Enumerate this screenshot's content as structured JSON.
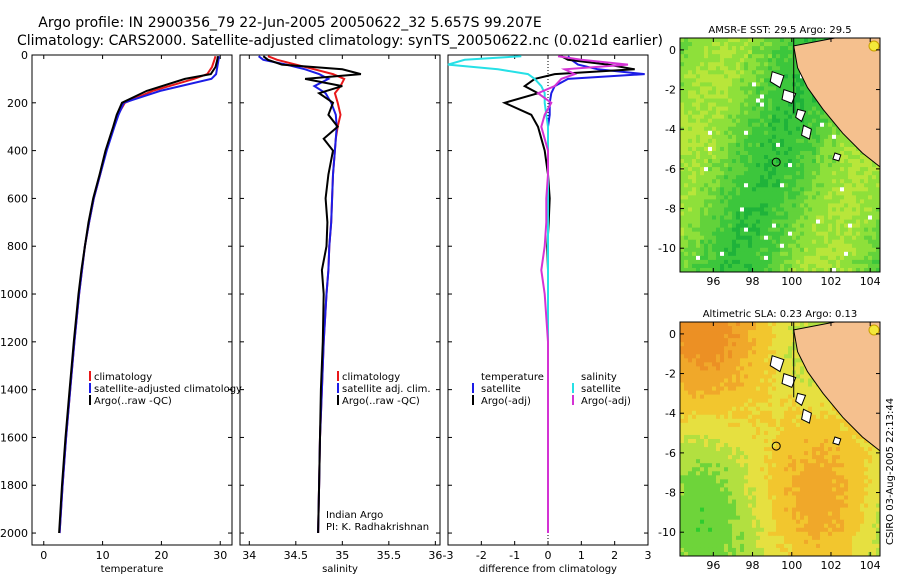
{
  "header": {
    "line1": "Argo profile: IN 2900356_79 22-Jun-2005 20050622_32 5.657S 99.207E",
    "line2": "Climatology: CARS2000. Satellite-adjusted climatology: synTS_20050622.nc (0.021d earlier)"
  },
  "footer": {
    "credit": "CSIRO 03-Aug-2005 22:13:44"
  },
  "colors": {
    "red": "#e8181a",
    "blue": "#1c1ce6",
    "black": "#000000",
    "cyan": "#26e0e6",
    "magenta": "#d433d4",
    "land": "#f5c08e"
  },
  "chart_data": [
    {
      "type": "line",
      "title": "",
      "xlabel": "temperature",
      "ylabel": "",
      "xlim": [
        -2,
        32
      ],
      "ylim": [
        2050,
        0
      ],
      "xticks": [
        0,
        10,
        20,
        30
      ],
      "yticks": [
        0,
        200,
        400,
        600,
        800,
        1000,
        1200,
        1400,
        1600,
        1800,
        2000
      ],
      "depths": [
        5,
        20,
        50,
        80,
        100,
        150,
        200,
        250,
        300,
        400,
        500,
        600,
        700,
        800,
        900,
        1000,
        1200,
        1400,
        1600,
        1800,
        2000
      ],
      "series": [
        {
          "name": "climatology",
          "color": "red",
          "values": [
            29.2,
            29.0,
            28.6,
            27.8,
            25.5,
            18.5,
            13.8,
            12.6,
            11.9,
            10.6,
            9.6,
            8.5,
            7.7,
            7.0,
            6.5,
            6.0,
            5.2,
            4.5,
            3.8,
            3.2,
            2.7
          ]
        },
        {
          "name": "satellite-adjusted climatology",
          "color": "blue",
          "values": [
            29.8,
            29.7,
            29.5,
            29.3,
            28.5,
            19.8,
            13.6,
            12.7,
            12.0,
            10.7,
            9.6,
            8.5,
            7.7,
            7.0,
            6.5,
            6.0,
            5.2,
            4.5,
            3.8,
            3.2,
            2.7
          ]
        },
        {
          "name": "Argo(..raw -QC)",
          "color": "black",
          "values": [
            29.6,
            29.5,
            29.2,
            28.4,
            24.0,
            17.5,
            13.3,
            12.4,
            11.8,
            10.5,
            9.5,
            8.4,
            7.6,
            7.0,
            6.4,
            5.9,
            5.1,
            4.4,
            3.7,
            3.1,
            2.6
          ]
        }
      ],
      "legend": [
        "climatology",
        "satellite-adjusted climatology",
        "Argo(..raw -QC)"
      ]
    },
    {
      "type": "line",
      "title": "",
      "xlabel": "salinity",
      "ylabel": "",
      "xlim": [
        33.9,
        36.05
      ],
      "ylim": [
        2050,
        0
      ],
      "xticks": [
        34,
        34.5,
        35,
        35.5,
        36
      ],
      "xtick_labels": [
        "34",
        "34.5",
        "35",
        "35.5",
        "36"
      ],
      "annotations": [
        "Indian Argo",
        "PI: K. Radhakrishnan"
      ],
      "depths": [
        5,
        20,
        40,
        60,
        80,
        100,
        130,
        160,
        200,
        250,
        300,
        350,
        400,
        500,
        600,
        700,
        800,
        900,
        1000,
        1200,
        1400,
        1600,
        1800,
        2000
      ],
      "series": [
        {
          "name": "climatology",
          "color": "red",
          "values": [
            34.2,
            34.3,
            34.5,
            34.7,
            34.9,
            35.02,
            34.98,
            34.92,
            34.95,
            34.98,
            34.95,
            34.93,
            34.92,
            34.9,
            34.89,
            34.88,
            34.86,
            34.85,
            34.83,
            34.8,
            34.78,
            34.76,
            34.75,
            34.74
          ]
        },
        {
          "name": "satellite adj. clim.",
          "color": "blue",
          "values": [
            34.1,
            34.15,
            34.4,
            34.6,
            34.75,
            34.85,
            34.7,
            34.82,
            34.88,
            34.93,
            34.94,
            34.93,
            34.92,
            34.9,
            34.89,
            34.88,
            34.86,
            34.85,
            34.83,
            34.8,
            34.78,
            34.76,
            34.75,
            34.74
          ]
        },
        {
          "name": "Argo(..raw -QC)",
          "color": "black",
          "values": [
            34.15,
            34.2,
            34.35,
            35.0,
            35.2,
            34.6,
            35.0,
            34.75,
            34.9,
            34.85,
            34.95,
            34.8,
            34.9,
            34.85,
            34.82,
            34.84,
            34.83,
            34.78,
            34.8,
            34.79,
            34.77,
            34.76,
            34.75,
            34.74
          ]
        }
      ],
      "legend": [
        "climatology",
        "satellite adj. clim.",
        "Argo(..raw -QC)"
      ]
    },
    {
      "type": "line",
      "title": "",
      "xlabel": "difference from climatology",
      "ylabel": "",
      "xlim": [
        -3,
        3
      ],
      "ylim": [
        2050,
        0
      ],
      "xticks": [
        -3,
        -2,
        -1,
        0,
        1,
        2,
        3
      ],
      "depths": [
        5,
        20,
        40,
        60,
        80,
        100,
        130,
        160,
        200,
        250,
        300,
        400,
        500,
        600,
        700,
        800,
        900,
        1000,
        1200,
        1400,
        1600,
        1800,
        2000
      ],
      "series": [
        {
          "name": "temperature satellite",
          "color": "blue",
          "values": [
            0.6,
            0.7,
            0.9,
            1.5,
            2.9,
            0.6,
            0.2,
            0.1,
            0.05,
            0.05,
            0.0,
            0.0,
            0.0,
            0.0,
            0.0,
            0.0,
            0.0,
            0.0,
            0.0,
            0.0,
            0.0,
            0.0,
            0.0
          ]
        },
        {
          "name": "temperature Argo(-adj)",
          "color": "black",
          "values": [
            0.4,
            0.6,
            1.8,
            2.6,
            0.2,
            -0.4,
            -0.7,
            -0.3,
            -1.3,
            -0.5,
            -0.3,
            -0.1,
            0.0,
            0.05,
            0.02,
            -0.02,
            0.0,
            0.0,
            0.0,
            0.0,
            0.0,
            0.0,
            0.0
          ]
        },
        {
          "name": "salinity satellite",
          "color": "cyan",
          "values": [
            -0.8,
            -2.5,
            -3.0,
            -1.5,
            -0.6,
            -0.4,
            -0.2,
            -0.1,
            -0.1,
            -0.05,
            0.0,
            0.0,
            0.0,
            0.0,
            0.0,
            0.0,
            0.0,
            0.0,
            0.0,
            0.0,
            0.0,
            0.0,
            0.0
          ]
        },
        {
          "name": "salinity Argo(-adj)",
          "color": "magenta",
          "values": [
            0.3,
            1.0,
            2.4,
            0.5,
            0.8,
            0.4,
            0.2,
            -0.3,
            0.1,
            -0.1,
            -0.2,
            0.0,
            0.0,
            -0.05,
            -0.05,
            -0.1,
            -0.2,
            -0.1,
            0.0,
            0.0,
            0.0,
            0.0,
            0.0
          ]
        }
      ],
      "legend_left": [
        "temperature",
        "satellite",
        "Argo(-adj)"
      ],
      "legend_right": [
        "salinity",
        "satellite",
        "Argo(-adj)"
      ]
    },
    {
      "type": "heatmap",
      "title": "AMSR-E SST: 29.5 Argo: 29.5",
      "xlim": [
        94.3,
        104.5
      ],
      "ylim": [
        -11.2,
        0.6
      ],
      "xticks": [
        96,
        98,
        100,
        102,
        104
      ],
      "yticks": [
        0,
        -2,
        -4,
        -6,
        -8,
        -10
      ],
      "marker": {
        "lon": 99.207,
        "lat": -5.657
      }
    },
    {
      "type": "heatmap",
      "title": "Altimetric SLA: 0.23 Argo: 0.13",
      "xlim": [
        94.3,
        104.5
      ],
      "ylim": [
        -11.2,
        0.6
      ],
      "xticks": [
        96,
        98,
        100,
        102,
        104
      ],
      "yticks": [
        0,
        -2,
        -4,
        -6,
        -8,
        -10
      ],
      "marker": {
        "lon": 99.207,
        "lat": -5.657
      }
    }
  ]
}
